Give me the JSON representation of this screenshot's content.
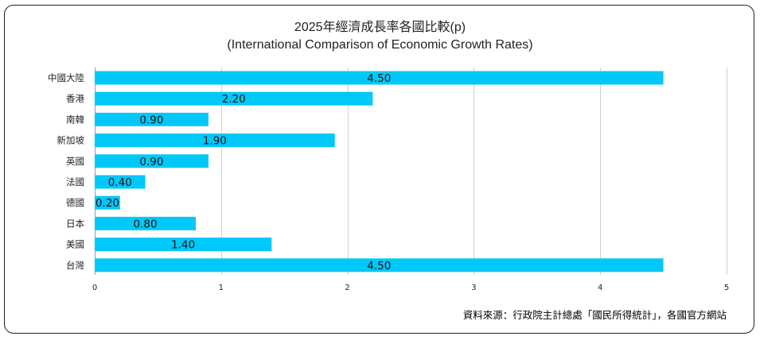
{
  "chart_data": {
    "type": "bar",
    "orientation": "horizontal",
    "title": "2025年經濟成長率各國比較(p)",
    "subtitle": "(International Comparison of Economic Growth Rates)",
    "categories": [
      "中國大陸",
      "香港",
      "南韓",
      "新加坡",
      "英國",
      "法國",
      "德國",
      "日本",
      "美國",
      "台灣"
    ],
    "values": [
      4.5,
      2.2,
      0.9,
      1.9,
      0.9,
      0.4,
      0.2,
      0.8,
      1.4,
      4.5
    ],
    "value_labels": [
      "4.50",
      "2.20",
      "0.90",
      "1.90",
      "0.90",
      "0.40",
      "0.20",
      "0.80",
      "1.40",
      "4.50"
    ],
    "xlim": [
      0,
      5
    ],
    "xticks": [
      "0",
      "1",
      "2",
      "3",
      "4",
      "5"
    ],
    "xlabel": "",
    "ylabel": "",
    "grid": "vertical",
    "bar_color": "#00c8f8"
  },
  "source_note": "資料來源：行政院主計總處「國民所得統計」，各國官方網站"
}
